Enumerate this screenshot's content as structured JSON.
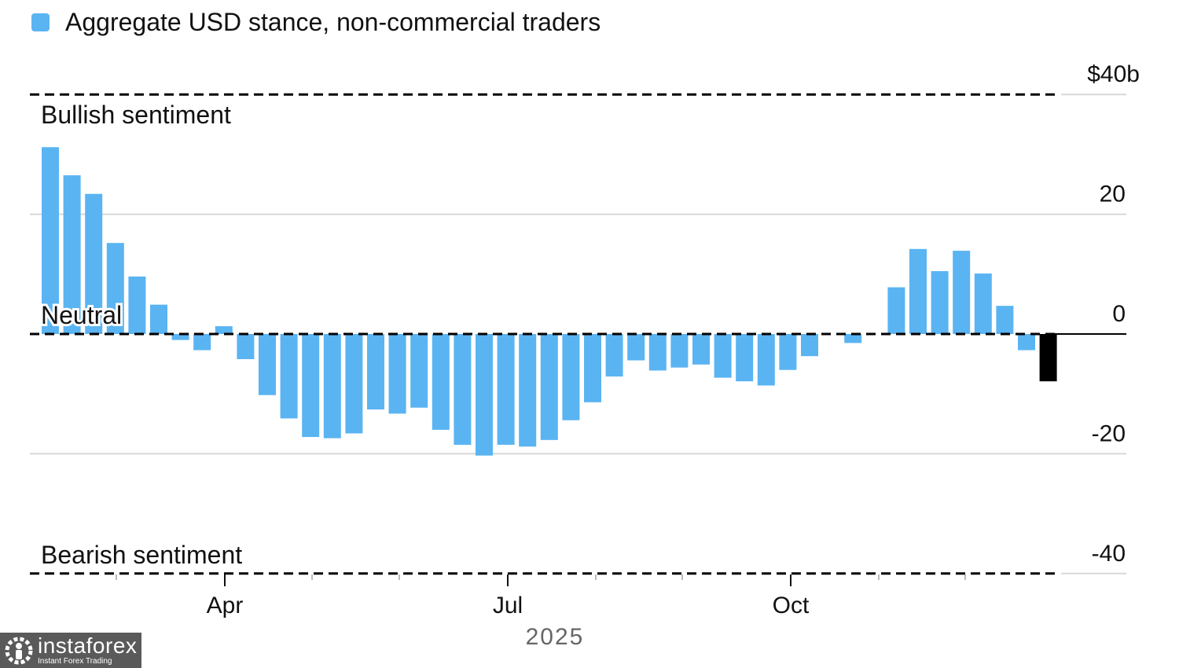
{
  "chart_data": {
    "type": "bar",
    "title": "",
    "legend": [
      {
        "label": "Aggregate USD stance, non-commercial traders",
        "color": "#5ab4f2"
      }
    ],
    "year_label": "2025",
    "y_ticks": [
      {
        "value": 40,
        "label": "$40b"
      },
      {
        "value": 20,
        "label": "20"
      },
      {
        "value": 0,
        "label": "0"
      },
      {
        "value": -20,
        "label": "-20"
      },
      {
        "value": -40,
        "label": "-40"
      }
    ],
    "ylim": [
      -40,
      40
    ],
    "x_ticks": [
      "Apr",
      "Jul",
      "Oct"
    ],
    "annotations": {
      "bullish": "Bullish sentiment",
      "neutral": "Neutral",
      "bearish": "Bearish sentiment"
    },
    "series": [
      {
        "name": "Aggregate USD stance, non-commercial traders",
        "color": "#5ab4f2",
        "latest_color": "#000000",
        "values": [
          31.2,
          26.5,
          23.4,
          15.2,
          9.6,
          4.9,
          -1.0,
          -2.7,
          1.3,
          -4.2,
          -10.2,
          -14.1,
          -17.2,
          -17.4,
          -16.6,
          -12.6,
          -13.3,
          -12.3,
          -16.0,
          -18.5,
          -20.3,
          -18.5,
          -18.8,
          -17.7,
          -14.4,
          -11.4,
          -7.1,
          -4.4,
          -6.1,
          -5.6,
          -5.1,
          -7.3,
          -7.9,
          -8.6,
          -6.0,
          -3.7,
          0.0,
          -1.5,
          0.0,
          7.8,
          14.2,
          10.5,
          13.9,
          10.1,
          4.7,
          -2.7,
          -7.9
        ]
      }
    ]
  },
  "watermark": {
    "brand": "instaforex",
    "tagline": "Instant Forex Trading"
  }
}
